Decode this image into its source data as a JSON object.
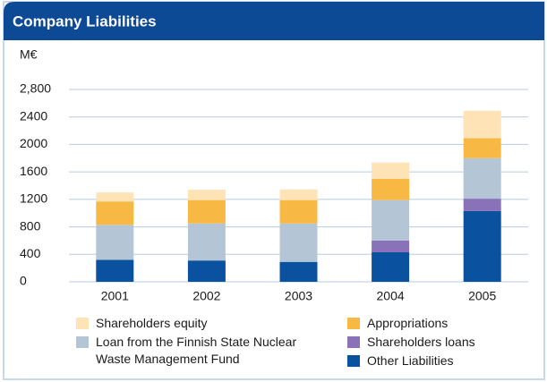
{
  "chart_data": {
    "type": "stacked_bar",
    "title": "Company Liabilities",
    "y_label": "M€",
    "categories": [
      "2001",
      "2002",
      "2003",
      "2004",
      "2005"
    ],
    "series": [
      {
        "name": "Shareholders equity",
        "color": "#fde3b5",
        "values": [
          130,
          150,
          155,
          235,
          400
        ]
      },
      {
        "name": "Appropriations",
        "color": "#f8b944",
        "values": [
          340,
          340,
          340,
          310,
          290
        ]
      },
      {
        "name": "Loan from the Finnish State Nuclear Waste Management Fund",
        "color": "#b4c6d6",
        "values": [
          510,
          540,
          560,
          590,
          590
        ]
      },
      {
        "name": "Shareholders loans",
        "color": "#8a72b8",
        "values": [
          0,
          0,
          0,
          170,
          180
        ]
      },
      {
        "name": "Other Liabilities",
        "color": "#0a51a0",
        "values": [
          320,
          310,
          290,
          430,
          1030
        ]
      }
    ],
    "ylim": [
      0,
      2800
    ],
    "yticks": [
      0,
      400,
      800,
      1200,
      1600,
      2000,
      2400,
      {
        "value": 2800,
        "label": "2,800"
      }
    ],
    "grid": true
  }
}
